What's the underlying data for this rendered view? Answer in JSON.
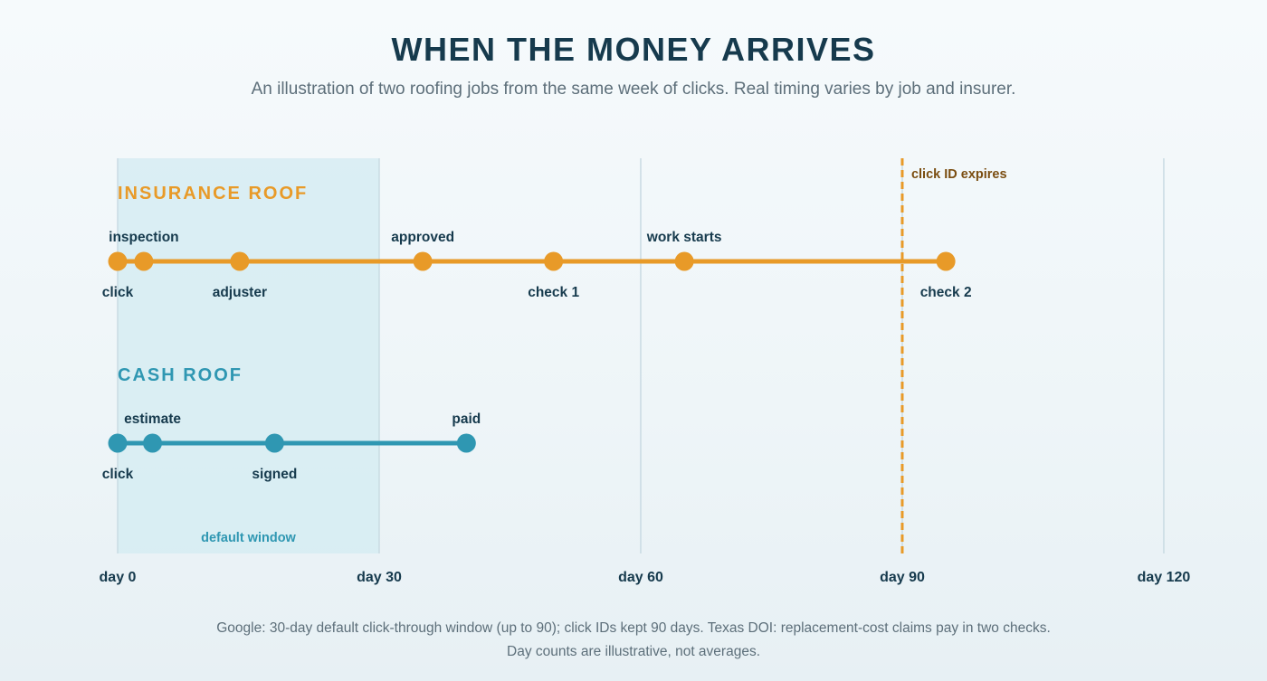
{
  "header": {
    "title": "WHEN THE MONEY ARRIVES",
    "subtitle": "An illustration of two roofing jobs from the same week of clicks. Real timing varies by job and insurer."
  },
  "colors": {
    "insurance": "#e89a28",
    "cash": "#2f97b2",
    "window_fill": "#d6ecf2",
    "grid": "#c9dbe3",
    "expiry_text": "#7a4d10",
    "label_text": "#163a4d"
  },
  "axis": {
    "ticks": [
      {
        "day": 0,
        "label": "day 0"
      },
      {
        "day": 30,
        "label": "day 30"
      },
      {
        "day": 60,
        "label": "day 60"
      },
      {
        "day": 90,
        "label": "day 90"
      },
      {
        "day": 120,
        "label": "day 120"
      }
    ]
  },
  "window": {
    "start_day": 0,
    "end_day": 30,
    "label": "default window"
  },
  "expiry": {
    "day": 90,
    "label": "click ID expires"
  },
  "tracks": [
    {
      "id": "insurance",
      "title": "INSURANCE ROOF",
      "events": [
        {
          "day": 0,
          "label": "click",
          "side": "below"
        },
        {
          "day": 3,
          "label": "inspection",
          "side": "above"
        },
        {
          "day": 14,
          "label": "adjuster",
          "side": "below"
        },
        {
          "day": 35,
          "label": "approved",
          "side": "above"
        },
        {
          "day": 50,
          "label": "check 1",
          "side": "below"
        },
        {
          "day": 65,
          "label": "work starts",
          "side": "above"
        },
        {
          "day": 95,
          "label": "check 2",
          "side": "below"
        }
      ]
    },
    {
      "id": "cash",
      "title": "CASH ROOF",
      "events": [
        {
          "day": 0,
          "label": "click",
          "side": "below"
        },
        {
          "day": 4,
          "label": "estimate",
          "side": "above"
        },
        {
          "day": 18,
          "label": "signed",
          "side": "below"
        },
        {
          "day": 40,
          "label": "paid",
          "side": "above"
        }
      ]
    }
  ],
  "footer": {
    "line1": "Google: 30-day default click-through window (up to 90); click IDs kept 90 days. Texas DOI: replacement-cost claims pay in two checks.",
    "line2": "Day counts are illustrative, not averages."
  }
}
